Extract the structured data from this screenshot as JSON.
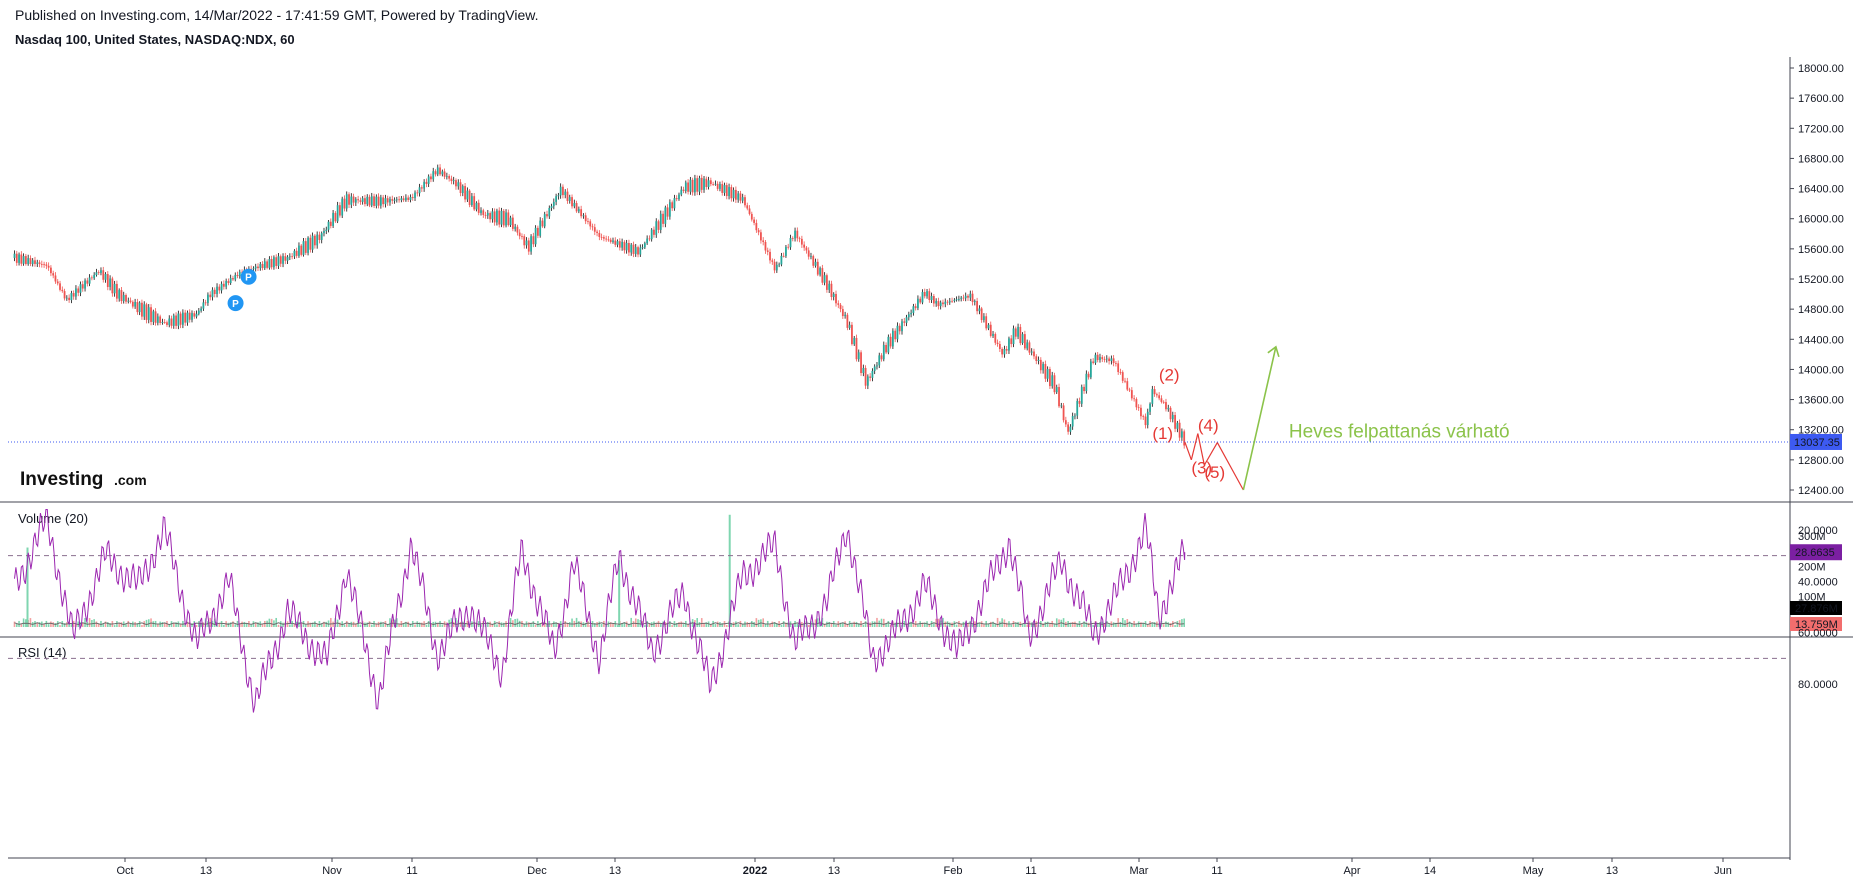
{
  "header": {
    "published": "Published on Investing.com, 14/Mar/2022 - 17:41:59 GMT, Powered by TradingView.",
    "symbol": "Nasdaq 100, United States, NASDAQ:NDX, 60"
  },
  "logo": {
    "main": "Investing",
    "suffix": ".com"
  },
  "colors": {
    "up": "#26a69a",
    "down": "#ef5350",
    "volume_up": "#7fd6b0",
    "volume_down": "#f4a0a0",
    "rsi": "#9c27b0",
    "rsi_band": "#efe1f1",
    "price_line": "#3d5af1",
    "wave": "#e53935",
    "annotation": "#8bc34a",
    "marker": "#2196f3",
    "vol_ma_badge": "#000000",
    "vol_badge": "#f26d6d",
    "rsi_badge": "#7b1fa2"
  },
  "chart_data": [
    {
      "type": "candlestick",
      "pane": "price",
      "ylim": [
        12200,
        18200
      ],
      "yticks": [
        "18000.00",
        "17600.00",
        "17200.00",
        "16800.00",
        "16400.00",
        "16000.00",
        "15600.00",
        "15200.00",
        "14800.00",
        "14400.00",
        "14000.00",
        "13600.00",
        "13200.00",
        "12800.00",
        "12400.00"
      ],
      "last_price": "13037.35",
      "x_labels": [
        "Oct",
        "13",
        "Nov",
        "11",
        "Dec",
        "13",
        "2022",
        "13",
        "Feb",
        "11",
        "Mar",
        "11",
        "Apr",
        "14",
        "May",
        "13",
        "Jun"
      ],
      "series": [
        {
          "name": "Nasdaq 100",
          "x": [
            "2021-09-15",
            "2021-09-20",
            "2021-09-23",
            "2021-09-28",
            "2021-10-01",
            "2021-10-04",
            "2021-10-08",
            "2021-10-13",
            "2021-10-15",
            "2021-10-20",
            "2021-10-27",
            "2021-11-01",
            "2021-11-05",
            "2021-11-10",
            "2021-11-15",
            "2021-11-19",
            "2021-11-22",
            "2021-11-26",
            "2021-11-30",
            "2021-12-03",
            "2021-12-08",
            "2021-12-14",
            "2021-12-20",
            "2021-12-27",
            "2021-12-31",
            "2022-01-05",
            "2022-01-10",
            "2022-01-13",
            "2022-01-18",
            "2022-01-21",
            "2022-01-24",
            "2022-01-27",
            "2022-02-02",
            "2022-02-04",
            "2022-02-09",
            "2022-02-14",
            "2022-02-16",
            "2022-02-22",
            "2022-02-24",
            "2022-02-28",
            "2022-03-03",
            "2022-03-08",
            "2022-03-09",
            "2022-03-11",
            "2022-03-14"
          ],
          "values": [
            15480,
            15380,
            14920,
            15310,
            14990,
            14820,
            14610,
            14730,
            14990,
            15300,
            15480,
            15760,
            16250,
            16230,
            16270,
            16650,
            16460,
            16060,
            15990,
            15620,
            16390,
            15760,
            15560,
            16420,
            16480,
            16260,
            15320,
            15820,
            15120,
            14640,
            13820,
            14300,
            15020,
            14860,
            14980,
            14200,
            14520,
            13780,
            13160,
            14160,
            14120,
            13280,
            13720,
            13520,
            13037.35
          ]
        }
      ],
      "annotations": [
        {
          "text": "Heves felpattanás várható",
          "x": "2022-03-30",
          "y": 13100
        },
        {
          "text": "(1)",
          "x": "2022-03-09",
          "y": 13080
        },
        {
          "text": "(2)",
          "x": "2022-03-10",
          "y": 13850
        },
        {
          "text": "(3)",
          "x": "2022-03-15",
          "y": 12620
        },
        {
          "text": "(4)",
          "x": "2022-03-16",
          "y": 13180
        },
        {
          "text": "(5)",
          "x": "2022-03-17",
          "y": 12560
        }
      ],
      "projection": {
        "x": [
          "2022-03-14",
          "2022-03-15",
          "2022-03-16",
          "2022-03-17",
          "2022-03-19",
          "2022-03-23",
          "2022-03-28"
        ],
        "y": [
          13037.35,
          12800,
          13150,
          12730,
          13030,
          12400,
          14300
        ]
      },
      "markers": [
        {
          "label": "P",
          "x": "2021-10-19",
          "y": 14880
        },
        {
          "label": "P",
          "x": "2021-10-21",
          "y": 15230
        }
      ]
    },
    {
      "type": "bar",
      "pane": "volume",
      "title": "Volume (20)",
      "yticks": [
        "300M",
        "200M",
        "100M"
      ],
      "ylim": [
        0,
        380
      ],
      "badges": [
        "27.876M",
        "13.759M"
      ],
      "spikes": [
        {
          "x": "2021-09-17",
          "value": 262
        },
        {
          "x": "2021-12-17",
          "value": 220
        },
        {
          "x": "2022-01-03",
          "value": 370
        }
      ]
    },
    {
      "type": "line",
      "pane": "rsi",
      "title": "RSI (14)",
      "yticks": [
        "80.0000",
        "60.0000",
        "40.0000",
        "20.0000"
      ],
      "ylim": [
        10,
        95
      ],
      "bands": [
        30,
        70
      ],
      "last_value": "28.6635",
      "series": [
        {
          "name": "RSI (14)",
          "x": [
            "2021-09-15",
            "2021-09-20",
            "2021-09-24",
            "2021-09-29",
            "2021-10-04",
            "2021-10-08",
            "2021-10-13",
            "2021-10-18",
            "2021-10-22",
            "2021-10-27",
            "2021-11-02",
            "2021-11-05",
            "2021-11-10",
            "2021-11-15",
            "2021-11-19",
            "2021-11-24",
            "2021-11-29",
            "2021-12-02",
            "2021-12-07",
            "2021-12-10",
            "2021-12-14",
            "2021-12-17",
            "2021-12-22",
            "2021-12-27",
            "2021-12-31",
            "2022-01-05",
            "2022-01-10",
            "2022-01-13",
            "2022-01-18",
            "2022-01-21",
            "2022-01-25",
            "2022-01-28",
            "2022-02-02",
            "2022-02-07",
            "2022-02-11",
            "2022-02-15",
            "2022-02-18",
            "2022-02-23",
            "2022-02-28",
            "2022-03-03",
            "2022-03-08",
            "2022-03-10",
            "2022-03-14"
          ],
          "values": [
            42,
            16,
            62,
            30,
            42,
            20,
            65,
            40,
            88,
            52,
            72,
            35,
            86,
            25,
            68,
            50,
            75,
            28,
            68,
            33,
            70,
            30,
            67,
            44,
            82,
            38,
            26,
            65,
            48,
            18,
            70,
            62,
            42,
            68,
            46,
            24,
            62,
            32,
            60,
            48,
            20,
            53,
            28.66
          ]
        }
      ]
    }
  ]
}
